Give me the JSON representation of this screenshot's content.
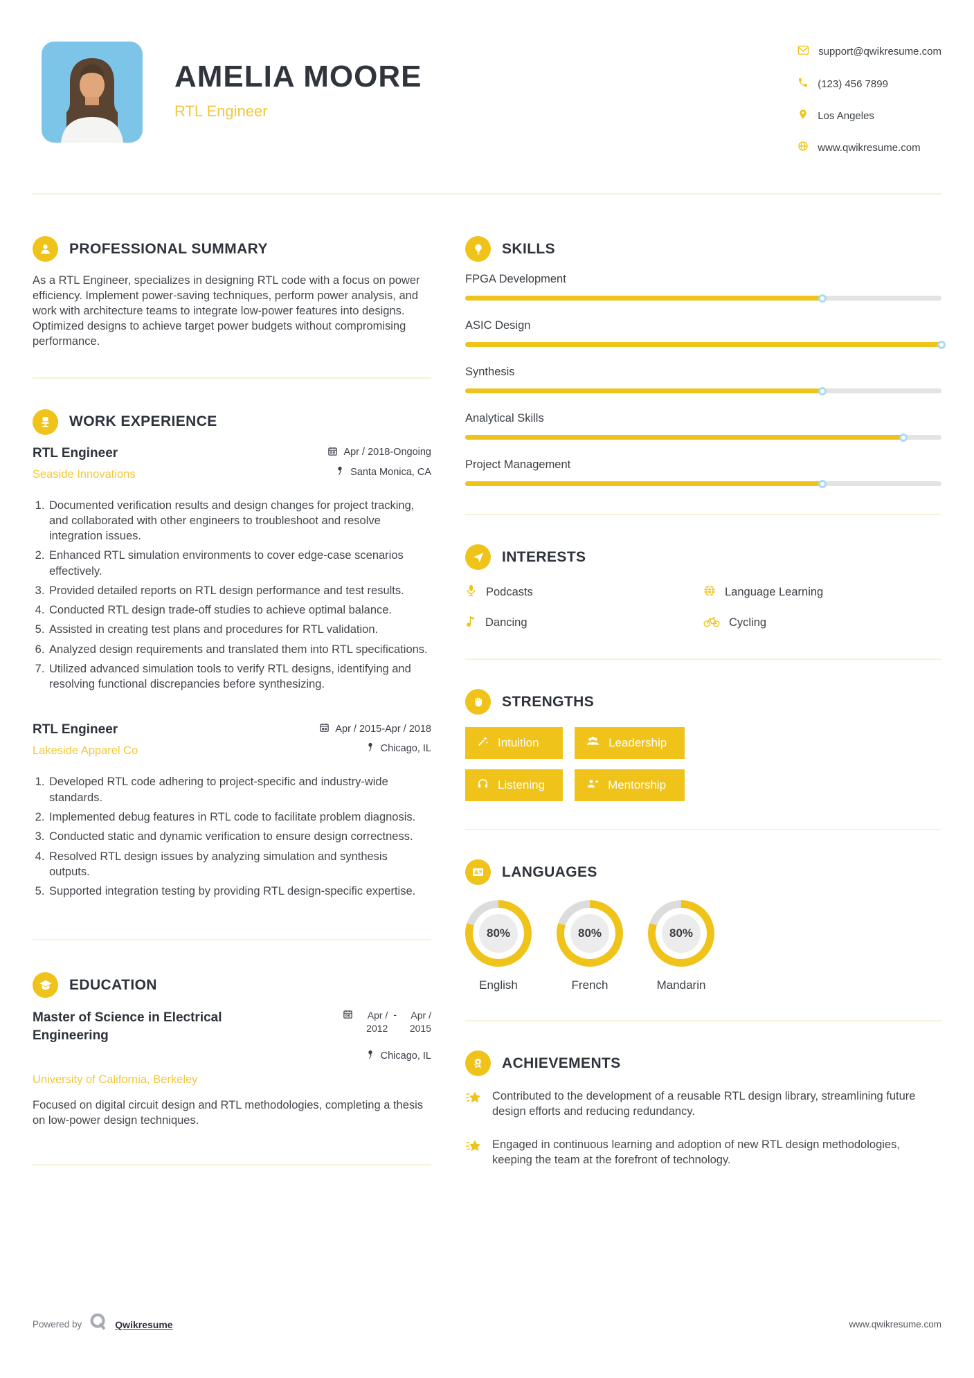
{
  "colors": {
    "accent": "#EFC319",
    "accent_text": "#F2C73B",
    "heading": "#2E323B",
    "body": "#43474C",
    "divider": "#F6F2D8",
    "slider_track": "#E3E3E3",
    "slider_handle_border": "#ABD9F1",
    "donut_rest": "#DCDCDC",
    "photo_bg": "#7CC5E8"
  },
  "header": {
    "name": "AMELIA MOORE",
    "title": "RTL Engineer",
    "contact": {
      "email": "support@qwikresume.com",
      "phone": "(123) 456 7899",
      "location": "Los Angeles",
      "website": "www.qwikresume.com"
    }
  },
  "summary": {
    "heading": "PROFESSIONAL SUMMARY",
    "text": "As a RTL Engineer, specializes in designing RTL code with a focus on power efficiency. Implement power-saving techniques, perform power analysis, and work with architecture teams to integrate low-power features into designs. Optimized designs to achieve target power budgets without compromising performance."
  },
  "experience": {
    "heading": "WORK EXPERIENCE",
    "jobs": [
      {
        "title": "RTL Engineer",
        "company": "Seaside Innovations",
        "dates": "Apr / 2018-Ongoing",
        "location": "Santa Monica, CA",
        "bullets": [
          "Documented verification results and design changes for project tracking, and collaborated with other engineers to troubleshoot and resolve integration issues.",
          "Enhanced RTL simulation environments to cover edge-case scenarios effectively.",
          "Provided detailed reports on RTL design performance and test results.",
          "Conducted RTL design trade-off studies to achieve optimal balance.",
          "Assisted in creating test plans and procedures for RTL validation.",
          "Analyzed design requirements and translated them into RTL specifications.",
          "Utilized advanced simulation tools to verify RTL designs, identifying and resolving functional discrepancies before synthesizing."
        ]
      },
      {
        "title": "RTL Engineer",
        "company": "Lakeside Apparel Co",
        "dates": "Apr / 2015-Apr / 2018",
        "location": "Chicago, IL",
        "bullets": [
          "Developed RTL code adhering to project-specific and industry-wide standards.",
          "Implemented debug features in RTL code to facilitate problem diagnosis.",
          "Conducted static and dynamic verification to ensure design correctness.",
          "Resolved RTL design issues by analyzing simulation and synthesis outputs.",
          "Supported integration testing by providing RTL design-specific expertise."
        ]
      }
    ]
  },
  "education": {
    "heading": "EDUCATION",
    "degree": "Master of Science in Electrical Engineering",
    "school": "University of California, Berkeley",
    "date_start": "Apr / 2012",
    "date_separator": "-",
    "date_end": "Apr / 2015",
    "location": "Chicago, IL",
    "description": "Focused on digital circuit design and RTL methodologies, completing a thesis on low-power design techniques."
  },
  "skills": {
    "heading": "SKILLS",
    "items": [
      {
        "label": "FPGA Development",
        "level_pct": 75
      },
      {
        "label": "ASIC Design",
        "level_pct": 100
      },
      {
        "label": "Synthesis",
        "level_pct": 75
      },
      {
        "label": "Analytical Skills",
        "level_pct": 92
      },
      {
        "label": "Project Management",
        "level_pct": 75
      }
    ]
  },
  "interests": {
    "heading": "INTERESTS",
    "items": [
      {
        "label": "Podcasts",
        "icon": "microphone-icon"
      },
      {
        "label": "Language Learning",
        "icon": "globe-icon"
      },
      {
        "label": "Dancing",
        "icon": "music-note-icon"
      },
      {
        "label": "Cycling",
        "icon": "bicycle-icon"
      }
    ]
  },
  "strengths": {
    "heading": "STRENGTHS",
    "items": [
      {
        "label": "Intuition",
        "icon": "magic-wand-icon"
      },
      {
        "label": "Leadership",
        "icon": "users-icon"
      },
      {
        "label": "Listening",
        "icon": "headphones-icon"
      },
      {
        "label": "Mentorship",
        "icon": "user-plus-icon"
      }
    ]
  },
  "languages": {
    "heading": "LANGUAGES",
    "items": [
      {
        "label": "English",
        "pct": 80,
        "pct_label": "80%"
      },
      {
        "label": "French",
        "pct": 80,
        "pct_label": "80%"
      },
      {
        "label": "Mandarin",
        "pct": 80,
        "pct_label": "80%"
      }
    ]
  },
  "achievements": {
    "heading": "ACHIEVEMENTS",
    "items": [
      "Contributed to the development of a reusable RTL design library, streamlining future design efforts and reducing redundancy.",
      "Engaged in continuous learning and adoption of new RTL design methodologies, keeping the team at the forefront of technology."
    ]
  },
  "footer": {
    "powered_by": "Powered by",
    "brand": "Qwikresume",
    "website": "www.qwikresume.com"
  }
}
